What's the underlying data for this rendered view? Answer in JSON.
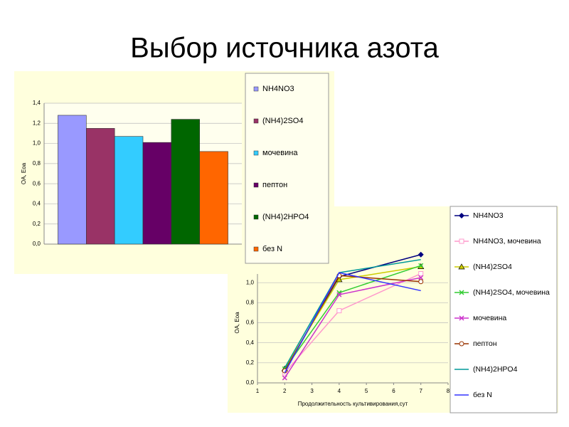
{
  "title": "Выбор источника азота",
  "chart_data": [
    {
      "type": "bar",
      "y_label": "OA, Eoa",
      "categories": [
        null
      ],
      "ylim": [
        0,
        1.4
      ],
      "yticks": [
        {
          "value": 0,
          "label": "0,0"
        },
        {
          "value": 0.2,
          "label": "0,2"
        },
        {
          "value": 0.4,
          "label": "0,4"
        },
        {
          "value": 0.6,
          "label": "0,6"
        },
        {
          "value": 0.8,
          "label": "0,8"
        },
        {
          "value": 1.0,
          "label": "1,0"
        },
        {
          "value": 1.2,
          "label": "1,2"
        },
        {
          "value": 1.4,
          "label": "1,4"
        }
      ],
      "grid": true,
      "legend": "right",
      "series": [
        {
          "name": "NH4NO3",
          "color": "#9999ff",
          "values": [
            1.28
          ]
        },
        {
          "name": "(NH4)2SO4",
          "color": "#993366",
          "values": [
            1.15
          ]
        },
        {
          "name": "мочевина",
          "color": "#33ccff",
          "values": [
            1.07
          ]
        },
        {
          "name": "пептон",
          "color": "#660066",
          "values": [
            1.01
          ]
        },
        {
          "name": "(NH4)2HPO4",
          "color": "#006600",
          "values": [
            1.24
          ]
        },
        {
          "name": "без N",
          "color": "#ff6600",
          "values": [
            0.92
          ]
        }
      ]
    },
    {
      "type": "line",
      "x_label": "Продолжительность культивирования,сут",
      "y_label": "OA, Eoa",
      "x": [
        2,
        4,
        7
      ],
      "xlim": [
        1,
        8
      ],
      "xticks": [
        1,
        2,
        3,
        4,
        5,
        6,
        7,
        8
      ],
      "ylim": [
        0,
        1.2
      ],
      "yticks": [
        {
          "value": 0,
          "label": "0,0"
        },
        {
          "value": 0.2,
          "label": "0,2"
        },
        {
          "value": 0.4,
          "label": "0,4"
        },
        {
          "value": 0.6,
          "label": "0,6"
        },
        {
          "value": 0.8,
          "label": "0,8"
        },
        {
          "value": 1.0,
          "label": "1,0"
        }
      ],
      "grid": true,
      "legend": "right",
      "series": [
        {
          "name": "NH4NO3",
          "color": "#000080",
          "marker": "diamond",
          "values": [
            0.12,
            1.06,
            1.28
          ]
        },
        {
          "name": "NH4NO3, мочевина",
          "color": "#ff99cc",
          "marker": "square",
          "values": [
            0.1,
            0.72,
            1.09
          ]
        },
        {
          "name": "(NH4)2SO4",
          "color": "#cccc00",
          "marker": "triangle",
          "values": [
            0.14,
            1.03,
            1.16
          ]
        },
        {
          "name": "(NH4)2SO4, мочевина",
          "color": "#33cc33",
          "marker": "x",
          "values": [
            0.14,
            0.9,
            1.17
          ]
        },
        {
          "name": "мочевина",
          "color": "#cc33cc",
          "marker": "x",
          "values": [
            0.05,
            0.88,
            1.05
          ]
        },
        {
          "name": "пептон",
          "color": "#993300",
          "marker": "circle",
          "values": [
            0.12,
            1.07,
            1.01
          ]
        },
        {
          "name": "(NH4)2HPO4",
          "color": "#009999",
          "marker": "none",
          "values": [
            0.15,
            1.1,
            1.23
          ]
        },
        {
          "name": "без N",
          "color": "#3333ff",
          "marker": "none",
          "values": [
            0.1,
            1.1,
            0.92
          ]
        }
      ]
    }
  ]
}
